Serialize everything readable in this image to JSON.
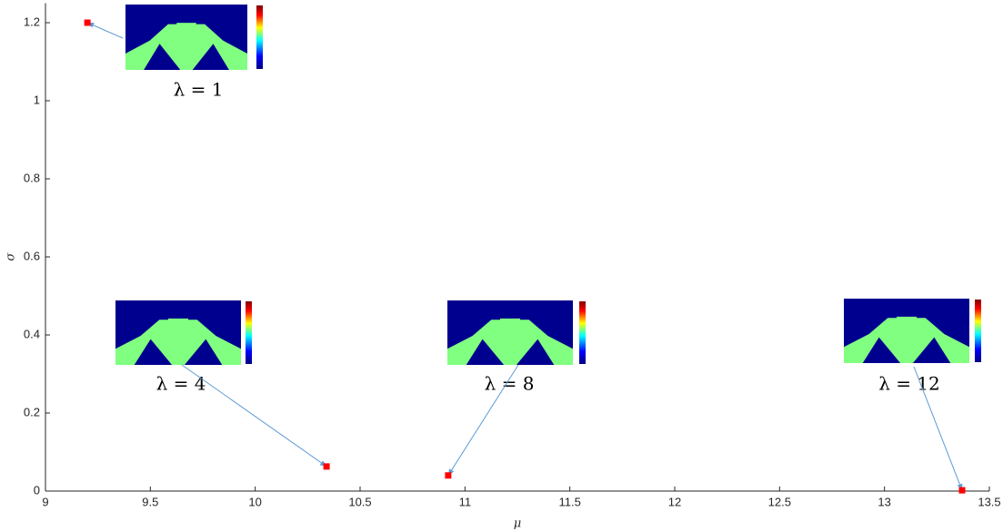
{
  "chart_data": {
    "type": "scatter",
    "x_label": "μ",
    "y_label": "σ",
    "x": [
      9.2,
      10.34,
      10.92,
      13.37
    ],
    "values": [
      1.2,
      0.063,
      0.04,
      0.002
    ],
    "color": "#ff0000",
    "xlim": [
      9,
      13.5
    ],
    "xticks": [
      9,
      9.5,
      10,
      10.5,
      11,
      11.5,
      12,
      12.5,
      13,
      13.5
    ],
    "ylim": [
      0,
      1.25
    ],
    "yticks": [
      0,
      0.2,
      0.4,
      0.6,
      0.8,
      1,
      1.2
    ],
    "grid": false,
    "annotations": [
      "λ = 1",
      "λ = 4",
      "λ = 8",
      "λ = 12"
    ]
  }
}
